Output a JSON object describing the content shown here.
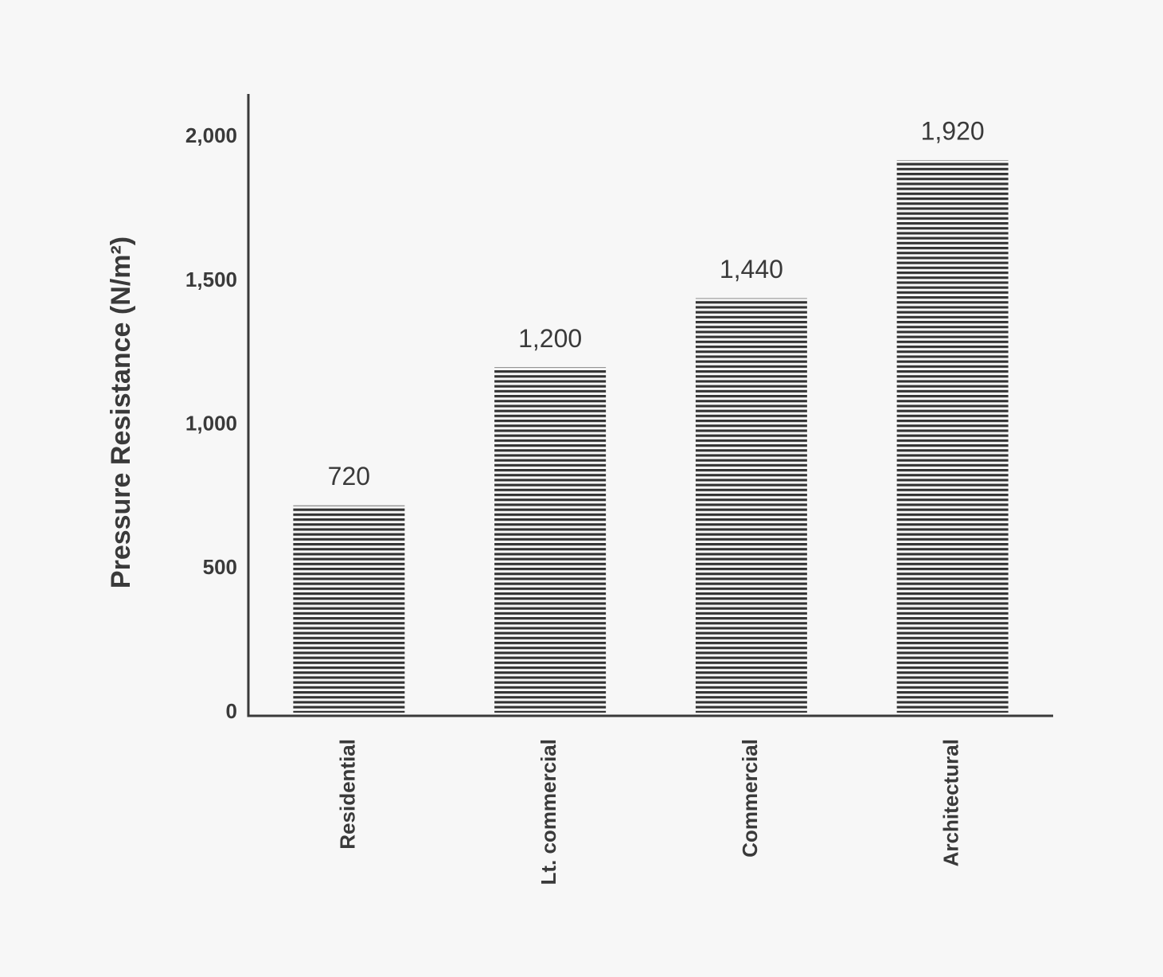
{
  "chart_data": {
    "type": "bar",
    "y_label": "Pressure Resistance (N/m²)",
    "categories": [
      "Residential",
      "Lt. commercial",
      "Commercial",
      "Architectural"
    ],
    "values": [
      720,
      1200,
      1440,
      1920
    ],
    "value_labels": [
      "720",
      "1,200",
      "1,440",
      "1,920"
    ],
    "color": "#333333",
    "ylim": [
      0,
      2150
    ],
    "yticks": [
      0,
      500,
      {
        "value": 1000,
        "label": "1,000"
      },
      {
        "value": 1500,
        "label": "1,500"
      },
      {
        "value": 2000,
        "label": "2,000"
      }
    ],
    "grid": false
  }
}
